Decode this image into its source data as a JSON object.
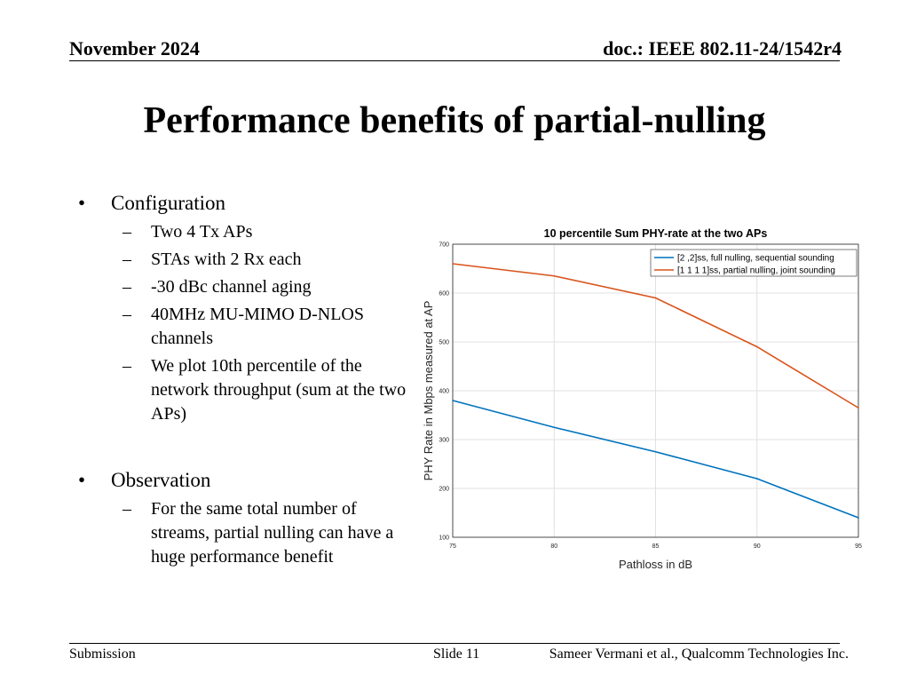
{
  "header": {
    "date": "November 2024",
    "doc": "doc.: IEEE 802.11-24/1542r4"
  },
  "title": "Performance benefits of partial-nulling",
  "config": {
    "heading": "Configuration",
    "items": [
      "Two 4 Tx APs",
      "STAs with 2 Rx each",
      "-30 dBc channel aging",
      "40MHz MU-MIMO D-NLOS channels",
      "We plot 10th percentile of the network throughput (sum at the two APs)"
    ]
  },
  "observation": {
    "heading": "Observation",
    "items": [
      "For the same total number of streams, partial nulling can have a huge performance benefit"
    ]
  },
  "footer": {
    "left": "Submission",
    "center": "Slide 11",
    "right": "Sameer Vermani et al., Qualcomm Technologies Inc."
  },
  "bullet_glyph": "•",
  "dash_glyph": "–",
  "chart_data": {
    "type": "line",
    "title": "10 percentile Sum PHY-rate at the two APs",
    "xlabel": "Pathloss in dB",
    "ylabel": "PHY Rate in Mbps measured at AP",
    "x": [
      75,
      80,
      85,
      90,
      95
    ],
    "xlim": [
      75,
      95
    ],
    "ylim": [
      100,
      700
    ],
    "xticks": [
      75,
      80,
      85,
      90,
      95
    ],
    "yticks": [
      100,
      200,
      300,
      400,
      500,
      600,
      700
    ],
    "grid": true,
    "legend_position": "top-right",
    "series": [
      {
        "name": "[2 ,2]ss, full nulling, sequential sounding",
        "values": [
          380,
          325,
          275,
          220,
          140
        ],
        "color": "#0072BD"
      },
      {
        "name": "[1 1 1 1]ss, partial nulling, joint sounding",
        "values": [
          660,
          635,
          590,
          490,
          365
        ],
        "color": "#D95319"
      }
    ]
  }
}
